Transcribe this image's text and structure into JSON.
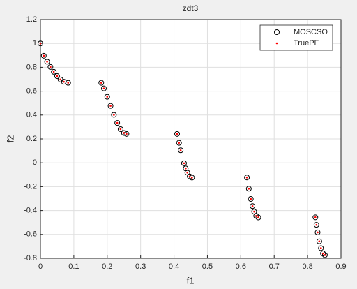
{
  "chart_data": {
    "type": "scatter",
    "title": "zdt3",
    "xlabel": "f1",
    "ylabel": "f2",
    "x": [
      0,
      0.01,
      0.02,
      0.03,
      0.04,
      0.05,
      0.06,
      0.07,
      0.083,
      0.1822,
      0.19,
      0.2,
      0.21,
      0.22,
      0.23,
      0.24,
      0.25,
      0.2577,
      0.4093,
      0.415,
      0.42,
      0.43,
      0.435,
      0.44,
      0.447,
      0.4538,
      0.6183,
      0.624,
      0.63,
      0.635,
      0.64,
      0.646,
      0.6525,
      0.8233,
      0.8265,
      0.83,
      0.835,
      0.84,
      0.846,
      0.8518
    ],
    "series": [
      {
        "name": "MOSCSO",
        "color": "#000000",
        "marker": "circle",
        "values": [
          1,
          0.897,
          0.847,
          0.803,
          0.762,
          0.726,
          0.698,
          0.679,
          0.67,
          0.67,
          0.623,
          0.553,
          0.477,
          0.402,
          0.334,
          0.282,
          0.25,
          0.242,
          0.242,
          0.167,
          0.105,
          -0.004,
          -0.047,
          -0.082,
          -0.114,
          -0.124,
          -0.123,
          -0.217,
          -0.303,
          -0.363,
          -0.409,
          -0.445,
          -0.458,
          -0.457,
          -0.52,
          -0.583,
          -0.658,
          -0.715,
          -0.759,
          -0.773
        ]
      },
      {
        "name": "TruePF",
        "color": "#ff0000",
        "marker": "dot",
        "values": [
          1,
          0.897,
          0.847,
          0.803,
          0.762,
          0.726,
          0.698,
          0.679,
          0.67,
          0.67,
          0.623,
          0.553,
          0.477,
          0.402,
          0.334,
          0.282,
          0.25,
          0.242,
          0.242,
          0.167,
          0.105,
          -0.004,
          -0.047,
          -0.082,
          -0.114,
          -0.124,
          -0.123,
          -0.217,
          -0.303,
          -0.363,
          -0.409,
          -0.445,
          -0.458,
          -0.457,
          -0.52,
          -0.583,
          -0.658,
          -0.715,
          -0.759,
          -0.773
        ]
      }
    ],
    "xlim": [
      0,
      0.9
    ],
    "xticks": [
      0,
      0.1,
      0.2,
      0.3,
      0.4,
      0.5,
      0.6,
      0.7,
      0.8,
      0.9
    ],
    "ylim": [
      -0.8,
      1.2
    ],
    "yticks": [
      -0.8,
      -0.6,
      -0.4,
      -0.2,
      0,
      0.2,
      0.4,
      0.6,
      0.8,
      1,
      1.2
    ],
    "grid": true,
    "legend": "northeast"
  }
}
